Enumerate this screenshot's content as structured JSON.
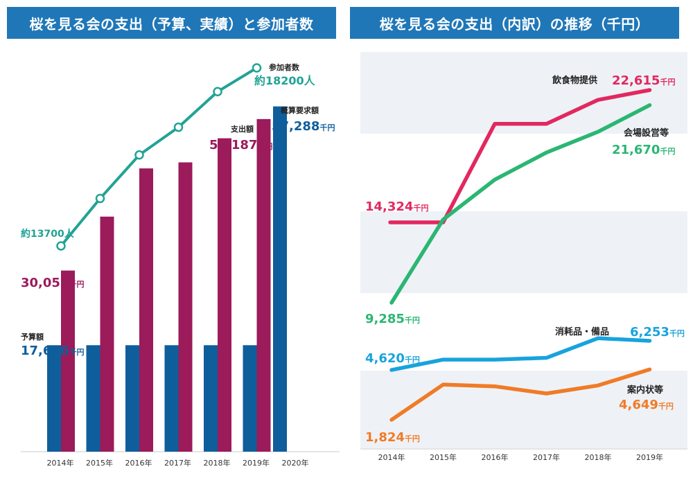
{
  "left_title": "桜を見る会の支出（予算、実績）と参加者数",
  "right_title": "桜を見る会の支出（内訳）の推移（千円）",
  "colors": {
    "header_bg": "#1f77b8",
    "budget_bar": "#0f5e9c",
    "spend_bar": "#9b1b5b",
    "participants_line": "#21a394",
    "food": "#e2285f",
    "venue": "#2bb673",
    "supplies": "#18a3dd",
    "invitations": "#f07b27",
    "band": "#eef2f6"
  },
  "chart_data": [
    {
      "type": "bar",
      "categories": [
        "2014年",
        "2015年",
        "2016年",
        "2017年",
        "2018年",
        "2019年",
        "2020年"
      ],
      "series": [
        {
          "name": "予算額",
          "values": [
            17666,
            17666,
            17666,
            17666,
            17666,
            17666,
            57288
          ]
        },
        {
          "name": "支出額",
          "values": [
            30053,
            39000,
            47000,
            48000,
            52000,
            55187,
            null
          ]
        }
      ],
      "line_series": {
        "name": "参加者数",
        "values": [
          13700,
          14900,
          16000,
          16700,
          17600,
          18200,
          null
        ]
      },
      "labels": {
        "spend_first": "30,053",
        "spend_last": "55,187",
        "budget_first": "17,666",
        "budget_2020": "57,288",
        "budget_caption": "予算額",
        "spend_caption": "支出額",
        "request_caption": "概算要求額",
        "participants_caption": "参加者数",
        "participants_first": "約13700人",
        "participants_last": "約18200人",
        "unit": "千円"
      },
      "ylim": [
        0,
        60000
      ]
    },
    {
      "type": "line",
      "categories": [
        "2014年",
        "2015年",
        "2016年",
        "2017年",
        "2018年",
        "2019年"
      ],
      "series": [
        {
          "name": "飲食物提供",
          "values": [
            14324,
            14324,
            20500,
            20500,
            22000,
            22615
          ]
        },
        {
          "name": "会場設営等",
          "values": [
            9285,
            14500,
            17000,
            18700,
            20000,
            21670
          ]
        },
        {
          "name": "消耗品・備品",
          "values": [
            4620,
            5200,
            5200,
            5300,
            6400,
            6253
          ]
        },
        {
          "name": "案内状等",
          "values": [
            1824,
            3800,
            3700,
            3300,
            3750,
            4649
          ]
        }
      ],
      "labels": {
        "food_first": "14,324",
        "food_last": "22,615",
        "venue_first": "9,285",
        "venue_last": "21,670",
        "supplies_first": "4,620",
        "supplies_last": "6,253",
        "invitations_first": "1,824",
        "invitations_last": "4,649",
        "unit": "千円"
      }
    }
  ]
}
